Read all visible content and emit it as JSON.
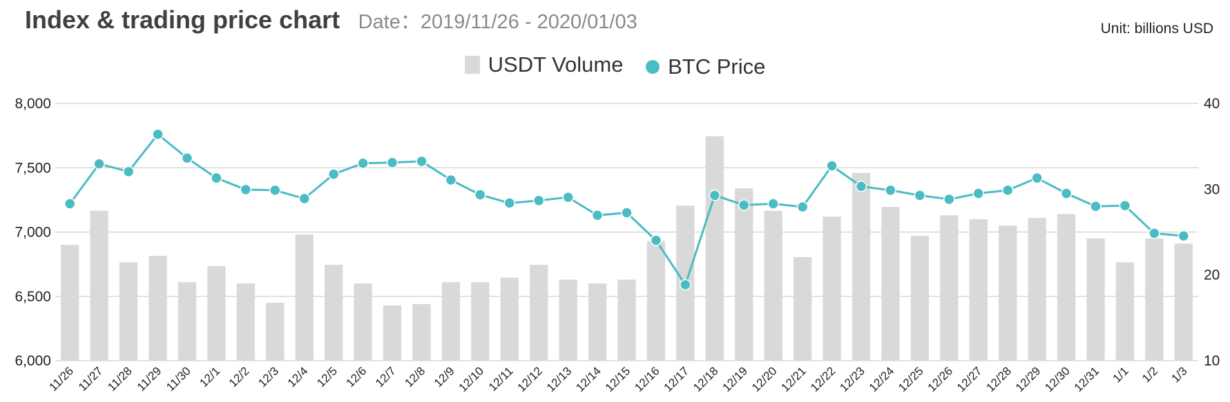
{
  "header": {
    "title": "Index & trading price chart",
    "subtitle": "Date：2019/11/26 - 2020/01/03",
    "unit": "Unit: billions USD"
  },
  "legend": {
    "volume_label": "USDT Volume",
    "price_label": "BTC Price"
  },
  "colors": {
    "bar": "#d9d9d9",
    "line": "#4bbcc4",
    "grid": "#d0d0d0"
  },
  "chart_data": {
    "type": "bar+line",
    "title": "Index & trading price chart",
    "subtitle": "Date：2019/11/26 - 2020/01/03",
    "unit": "Unit: billions USD",
    "legend_position": "top-center",
    "grid": true,
    "categories": [
      "11/26",
      "11/27",
      "11/28",
      "11/29",
      "11/30",
      "12/1",
      "12/2",
      "12/3",
      "12/4",
      "12/5",
      "12/6",
      "12/7",
      "12/8",
      "12/9",
      "12/10",
      "12/11",
      "12/12",
      "12/13",
      "12/14",
      "12/15",
      "12/16",
      "12/17",
      "12/18",
      "12/19",
      "12/20",
      "12/21",
      "12/22",
      "12/23",
      "12/24",
      "12/25",
      "12/26",
      "12/27",
      "12/28",
      "12/29",
      "12/30",
      "12/31",
      "1/1",
      "1/2",
      "1/3"
    ],
    "y_left": {
      "range": [
        6000,
        8000
      ],
      "ticks": [
        6000,
        6500,
        7000,
        7500,
        8000
      ],
      "tick_labels": [
        "6,000",
        "6,500",
        "7,000",
        "7,500",
        "8,000"
      ]
    },
    "y_right": {
      "range": [
        10,
        40
      ],
      "ticks": [
        10,
        20,
        30,
        40
      ],
      "tick_labels": [
        "10",
        "20",
        "30",
        "40"
      ]
    },
    "series": [
      {
        "name": "USDT Volume",
        "type": "bar",
        "axis": "left",
        "values": [
          6900,
          7165,
          6765,
          6815,
          6610,
          6735,
          6600,
          6450,
          6980,
          6745,
          6600,
          6430,
          6440,
          6610,
          6610,
          6645,
          6745,
          6630,
          6600,
          6630,
          6930,
          7205,
          7745,
          7340,
          7165,
          6805,
          7120,
          7460,
          7195,
          6970,
          7130,
          7100,
          7050,
          7110,
          7140,
          6950,
          6765,
          6950,
          6910
        ]
      },
      {
        "name": "BTC Price",
        "type": "line",
        "axis": "left",
        "values": [
          7220,
          7530,
          7470,
          7760,
          7575,
          7420,
          7330,
          7325,
          7260,
          7450,
          7535,
          7540,
          7550,
          7405,
          7290,
          7225,
          7245,
          7270,
          7130,
          7150,
          6935,
          6590,
          7285,
          7210,
          7220,
          7195,
          7515,
          7355,
          7325,
          7285,
          7255,
          7300,
          7325,
          7420,
          7300,
          7200,
          7205,
          6990,
          6970
        ]
      }
    ]
  }
}
